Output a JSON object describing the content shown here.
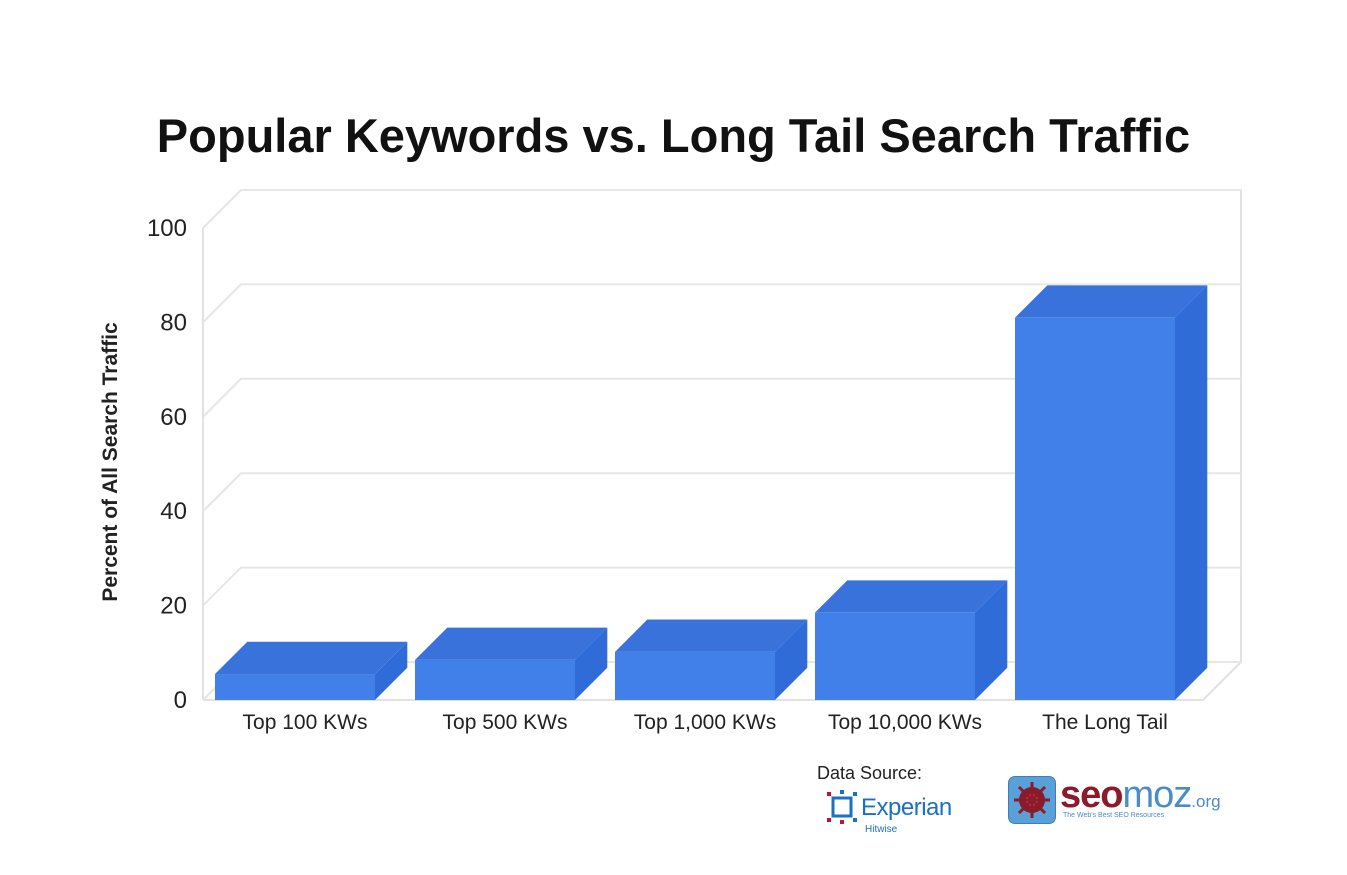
{
  "chart_data": {
    "type": "bar",
    "title": "Popular Keywords vs. Long Tail Search Traffic",
    "xlabel": "",
    "ylabel": "Percent of All Search Traffic",
    "categories": [
      "Top 100 KWs",
      "Top 500 KWs",
      "Top 1,000 KWs",
      "Top 10,000 KWs",
      "The Long Tail"
    ],
    "values": [
      5.5,
      8.5,
      10.2,
      18.5,
      81
    ],
    "ylim": [
      0,
      100
    ],
    "yticks": [
      0,
      20,
      40,
      60,
      80,
      100
    ],
    "grid": true,
    "style": "3d",
    "bar_color": "#4080e8"
  },
  "source": {
    "label": "Data Source:",
    "experian_name": "Experian",
    "experian_sub": "Hitwise",
    "seomoz_seo": "seo",
    "seomoz_moz": "moz",
    "seomoz_org": ".org",
    "seomoz_tagline": "The Web's Best SEO Resources"
  }
}
